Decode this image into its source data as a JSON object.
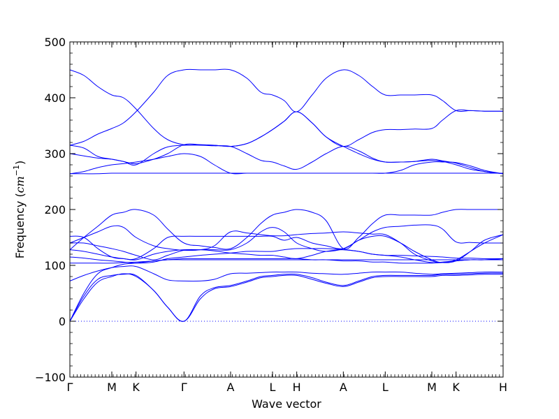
{
  "chart_data": {
    "type": "line",
    "title": "",
    "xlabel": "Wave vector",
    "ylabel": "Frequency (cm⁻¹)",
    "ylabel_parts": {
      "prefix": "Frequency (",
      "unit": "cm",
      "exponent": "−1",
      "suffix": ")"
    },
    "ylim": [
      -100,
      500
    ],
    "yticks": [
      -100,
      0,
      100,
      200,
      300,
      400,
      500
    ],
    "xlim": [
      0,
      9.3
    ],
    "high_symmetry_points": [
      {
        "label": "Γ",
        "x": 0.0
      },
      {
        "label": "M",
        "x": 0.9
      },
      {
        "label": "K",
        "x": 1.42
      },
      {
        "label": "Γ",
        "x": 2.45
      },
      {
        "label": "A",
        "x": 3.45
      },
      {
        "label": "L",
        "x": 4.35
      },
      {
        "label": "H",
        "x": 4.87
      },
      {
        "label": "A",
        "x": 5.87
      },
      {
        "label": "L",
        "x": 6.77
      },
      {
        "label": "M",
        "x": 7.77
      },
      {
        "label": "K",
        "x": 8.29
      },
      {
        "label": "H",
        "x": 9.3
      }
    ],
    "zero_line": true,
    "line_color": "#0000ff",
    "series": [
      {
        "x": [
          0,
          0.3,
          0.6,
          0.9,
          1.15,
          1.42,
          1.8,
          2.1,
          2.45,
          2.8,
          3.1,
          3.45,
          3.8,
          4.1,
          4.35,
          4.6,
          4.87,
          5.2,
          5.5,
          5.87,
          6.2,
          6.5,
          6.77,
          7.1,
          7.4,
          7.77,
          8.0,
          8.29,
          8.6,
          8.9,
          9.3
        ],
        "y": [
          0,
          40,
          70,
          80,
          85,
          80,
          55,
          25,
          0,
          40,
          58,
          62,
          70,
          78,
          80,
          82,
          82,
          75,
          68,
          62,
          70,
          78,
          80,
          80,
          80,
          80,
          82,
          82,
          83,
          84,
          84
        ]
      },
      {
        "x": [
          0,
          0.3,
          0.6,
          0.9,
          1.15,
          1.42,
          1.8,
          2.1,
          2.45,
          2.8,
          3.1,
          3.45,
          3.8,
          4.1,
          4.35,
          4.6,
          4.87,
          5.2,
          5.5,
          5.87,
          6.2,
          6.5,
          6.77,
          7.1,
          7.4,
          7.77,
          8.0,
          8.29,
          8.6,
          8.9,
          9.3
        ],
        "y": [
          0,
          45,
          75,
          82,
          84,
          82,
          55,
          25,
          0,
          45,
          60,
          64,
          72,
          80,
          82,
          84,
          84,
          78,
          70,
          64,
          72,
          80,
          82,
          82,
          82,
          82,
          84,
          84,
          85,
          86,
          86
        ]
      },
      {
        "x": [
          0,
          0.3,
          0.6,
          0.9,
          1.15,
          1.42,
          1.8,
          2.1,
          2.45,
          2.8,
          3.1,
          3.45,
          3.8,
          4.1,
          4.35,
          4.6,
          4.87,
          5.2,
          5.5,
          5.87,
          6.2,
          6.5,
          6.77,
          7.1,
          7.4,
          7.77,
          8.0,
          8.29,
          8.6,
          8.9,
          9.3
        ],
        "y": [
          72,
          82,
          90,
          96,
          98,
          98,
          85,
          74,
          72,
          72,
          75,
          85,
          86,
          87,
          88,
          88,
          88,
          86,
          85,
          84,
          86,
          88,
          88,
          88,
          86,
          84,
          85,
          86,
          87,
          88,
          88
        ]
      },
      {
        "x": [
          0,
          0.3,
          0.6,
          0.9,
          1.15,
          1.42,
          1.8,
          2.1,
          2.45,
          2.8,
          3.1,
          3.45,
          3.8,
          4.1,
          4.35,
          4.6,
          4.87,
          5.2,
          5.5,
          5.87,
          6.2,
          6.5,
          6.77,
          7.1,
          7.4,
          7.77,
          8.0,
          8.29,
          8.6,
          8.9,
          9.3
        ],
        "y": [
          0,
          50,
          85,
          96,
          102,
          104,
          108,
          110,
          110,
          110,
          110,
          110,
          110,
          110,
          110,
          110,
          110,
          110,
          110,
          110,
          110,
          110,
          110,
          110,
          110,
          110,
          110,
          110,
          110,
          110,
          110
        ]
      },
      {
        "x": [
          0,
          0.3,
          0.6,
          0.9,
          1.15,
          1.42,
          1.8,
          2.1,
          2.45,
          2.8,
          3.1,
          3.45,
          3.8,
          4.1,
          4.35,
          4.6,
          4.87,
          5.2,
          5.5,
          5.87,
          6.2,
          6.5,
          6.77,
          7.1,
          7.4,
          7.77,
          8.0,
          8.29,
          8.6,
          8.9,
          9.3
        ],
        "y": [
          104,
          104,
          104,
          104,
          105,
          106,
          108,
          110,
          112,
          112,
          112,
          112,
          112,
          112,
          112,
          112,
          112,
          110,
          110,
          108,
          108,
          106,
          106,
          104,
          104,
          104,
          106,
          108,
          110,
          110,
          112
        ]
      },
      {
        "x": [
          0,
          0.3,
          0.6,
          0.9,
          1.15,
          1.42,
          1.8,
          2.1,
          2.45,
          2.8,
          3.1,
          3.45,
          3.8,
          4.1,
          4.35,
          4.6,
          4.87,
          5.2,
          5.5,
          5.87,
          6.2,
          6.5,
          6.77,
          7.1,
          7.4,
          7.77,
          8.0,
          8.29,
          8.6,
          8.9,
          9.3
        ],
        "y": [
          115,
          113,
          110,
          108,
          106,
          104,
          106,
          112,
          115,
          118,
          120,
          122,
          125,
          125,
          125,
          128,
          130,
          130,
          130,
          128,
          125,
          120,
          118,
          115,
          110,
          105,
          105,
          108,
          110,
          110,
          112
        ]
      },
      {
        "x": [
          0,
          0.3,
          0.6,
          0.9,
          1.15,
          1.42,
          1.8,
          2.1,
          2.45,
          2.8,
          3.1,
          3.45,
          3.8,
          4.1,
          4.35,
          4.6,
          4.87,
          5.2,
          5.5,
          5.87,
          6.2,
          6.5,
          6.77,
          7.1,
          7.4,
          7.77,
          8.0,
          8.29,
          8.6,
          8.9,
          9.3
        ],
        "y": [
          128,
          125,
          120,
          115,
          112,
          110,
          120,
          125,
          128,
          128,
          126,
          122,
          120,
          118,
          118,
          115,
          112,
          118,
          125,
          128,
          125,
          120,
          118,
          118,
          117,
          116,
          115,
          113,
          113,
          112,
          112
        ]
      },
      {
        "x": [
          0,
          0.3,
          0.6,
          0.9,
          1.15,
          1.42,
          1.8,
          2.1,
          2.45,
          2.8,
          3.1,
          3.45,
          3.8,
          4.1,
          4.35,
          4.6,
          4.87,
          5.2,
          5.5,
          5.87,
          6.2,
          6.5,
          6.77,
          7.1,
          7.4,
          7.77,
          8.0,
          8.29,
          8.6,
          8.9,
          9.3
        ],
        "y": [
          140,
          140,
          135,
          130,
          125,
          118,
          110,
          118,
          127,
          128,
          128,
          128,
          140,
          160,
          168,
          160,
          140,
          130,
          125,
          130,
          145,
          160,
          168,
          170,
          172,
          172,
          165,
          142,
          141,
          140,
          140
        ]
      },
      {
        "x": [
          0,
          0.3,
          0.6,
          0.9,
          1.15,
          1.42,
          1.8,
          2.1,
          2.45,
          2.8,
          3.1,
          3.45,
          3.8,
          4.1,
          4.35,
          4.6,
          4.87,
          5.2,
          5.5,
          5.87,
          6.2,
          6.5,
          6.77,
          7.1,
          7.4,
          7.77,
          8.0,
          8.29,
          8.6,
          8.9,
          9.3
        ],
        "y": [
          152,
          150,
          130,
          115,
          112,
          112,
          130,
          150,
          152,
          152,
          152,
          152,
          152,
          152,
          152,
          145,
          150,
          140,
          135,
          130,
          145,
          152,
          152,
          140,
          125,
          110,
          105,
          108,
          125,
          145,
          155
        ]
      },
      {
        "x": [
          0,
          0.3,
          0.6,
          0.9,
          1.15,
          1.42,
          1.8,
          2.1,
          2.45,
          2.8,
          3.1,
          3.45,
          3.8,
          4.1,
          4.35,
          4.6,
          4.87,
          5.2,
          5.5,
          5.87,
          6.2,
          6.5,
          6.77,
          7.1,
          7.4,
          7.77,
          8.0,
          8.29,
          8.6,
          8.9,
          9.3
        ],
        "y": [
          140,
          150,
          160,
          170,
          168,
          150,
          135,
          130,
          127,
          128,
          135,
          160,
          158,
          155,
          153,
          153,
          155,
          157,
          158,
          160,
          158,
          156,
          155,
          140,
          120,
          108,
          105,
          110,
          125,
          140,
          155
        ]
      },
      {
        "x": [
          0,
          0.3,
          0.6,
          0.9,
          1.15,
          1.42,
          1.8,
          2.1,
          2.45,
          2.8,
          3.1,
          3.45,
          3.8,
          4.1,
          4.35,
          4.6,
          4.87,
          5.2,
          5.5,
          5.87,
          6.2,
          6.5,
          6.77,
          7.1,
          7.4,
          7.77,
          8.0,
          8.29,
          8.6,
          8.9,
          9.3
        ],
        "y": [
          128,
          150,
          170,
          190,
          195,
          200,
          190,
          165,
          140,
          135,
          132,
          130,
          150,
          175,
          190,
          195,
          200,
          195,
          180,
          130,
          150,
          175,
          190,
          190,
          190,
          190,
          195,
          200,
          200,
          200,
          200
        ]
      },
      {
        "x": [
          0,
          0.3,
          0.6,
          0.9,
          1.15,
          1.42,
          1.8,
          2.1,
          2.45,
          2.8,
          3.1,
          3.45,
          3.8,
          4.1,
          4.35,
          4.6,
          4.87,
          5.2,
          5.5,
          5.87,
          6.2,
          6.5,
          6.77,
          7.1,
          7.4,
          7.77,
          8.0,
          8.29,
          8.6,
          8.9,
          9.3
        ],
        "y": [
          264,
          264,
          264,
          265,
          265,
          265,
          265,
          265,
          265,
          265,
          265,
          265,
          265,
          265,
          265,
          265,
          265,
          265,
          265,
          265,
          265,
          265,
          265,
          265,
          265,
          265,
          265,
          265,
          265,
          265,
          265
        ]
      },
      {
        "x": [
          0,
          0.3,
          0.6,
          0.9,
          1.15,
          1.42,
          1.8,
          2.1,
          2.45,
          2.8,
          3.1,
          3.45,
          3.8,
          4.1,
          4.35,
          4.6,
          4.87,
          5.2,
          5.5,
          5.87,
          6.2,
          6.5,
          6.77,
          7.1,
          7.4,
          7.77,
          8.0,
          8.29,
          8.6,
          8.9,
          9.3
        ],
        "y": [
          264,
          268,
          275,
          280,
          282,
          285,
          290,
          295,
          300,
          295,
          280,
          265,
          265,
          265,
          265,
          265,
          265,
          265,
          265,
          265,
          265,
          265,
          265,
          270,
          280,
          285,
          285,
          284,
          278,
          270,
          264
        ]
      },
      {
        "x": [
          0,
          0.3,
          0.6,
          0.9,
          1.15,
          1.42,
          1.8,
          2.1,
          2.45,
          2.8,
          3.1,
          3.45,
          3.8,
          4.1,
          4.35,
          4.6,
          4.87,
          5.2,
          5.5,
          5.87,
          6.2,
          6.5,
          6.77,
          7.1,
          7.4,
          7.77,
          8.0,
          8.29,
          8.6,
          8.9,
          9.3
        ],
        "y": [
          300,
          296,
          292,
          290,
          286,
          280,
          300,
          312,
          315,
          315,
          314,
          313,
          300,
          288,
          285,
          278,
          272,
          285,
          300,
          313,
          305,
          292,
          285,
          285,
          286,
          290,
          287,
          283,
          275,
          268,
          264
        ]
      },
      {
        "x": [
          0,
          0.3,
          0.6,
          0.9,
          1.15,
          1.42,
          1.8,
          2.1,
          2.45,
          2.8,
          3.1,
          3.45,
          3.8,
          4.1,
          4.35,
          4.6,
          4.87,
          5.2,
          5.5,
          5.87,
          6.2,
          6.5,
          6.77,
          7.1,
          7.4,
          7.77,
          8.0,
          8.29,
          8.6,
          8.9,
          9.3
        ],
        "y": [
          315,
          310,
          295,
          290,
          286,
          282,
          290,
          300,
          316,
          316,
          315,
          313,
          318,
          330,
          343,
          358,
          375,
          355,
          330,
          313,
          325,
          338,
          343,
          343,
          344,
          345,
          360,
          377,
          377,
          376,
          376
        ]
      },
      {
        "x": [
          0,
          0.3,
          0.6,
          0.9,
          1.15,
          1.42,
          1.8,
          2.1,
          2.45,
          2.8,
          3.1,
          3.45,
          3.8,
          4.1,
          4.35,
          4.6,
          4.87,
          5.2,
          5.5,
          5.87,
          6.2,
          6.5,
          6.77,
          7.1,
          7.4,
          7.77,
          8.0,
          8.29,
          8.6,
          8.9,
          9.3
        ],
        "y": [
          315,
          322,
          335,
          345,
          355,
          375,
          410,
          440,
          450,
          450,
          450,
          450,
          435,
          410,
          405,
          395,
          375,
          405,
          435,
          450,
          440,
          420,
          405,
          405,
          405,
          405,
          395,
          377,
          377,
          376,
          376
        ]
      },
      {
        "x": [
          0,
          0.3,
          0.6,
          0.9,
          1.15,
          1.42,
          1.8,
          2.1,
          2.45,
          2.8,
          3.1,
          3.45,
          3.8,
          4.1,
          4.35,
          4.6,
          4.87,
          5.2,
          5.5,
          5.87,
          6.2,
          6.5,
          6.77,
          7.1,
          7.4,
          7.77,
          8.0,
          8.29,
          8.6,
          8.9,
          9.3
        ],
        "y": [
          450,
          440,
          420,
          405,
          400,
          380,
          345,
          325,
          316,
          316,
          315,
          313,
          318,
          330,
          343,
          358,
          375,
          355,
          330,
          313,
          300,
          290,
          285,
          285,
          286,
          288,
          286,
          280,
          272,
          268,
          264
        ]
      }
    ]
  }
}
